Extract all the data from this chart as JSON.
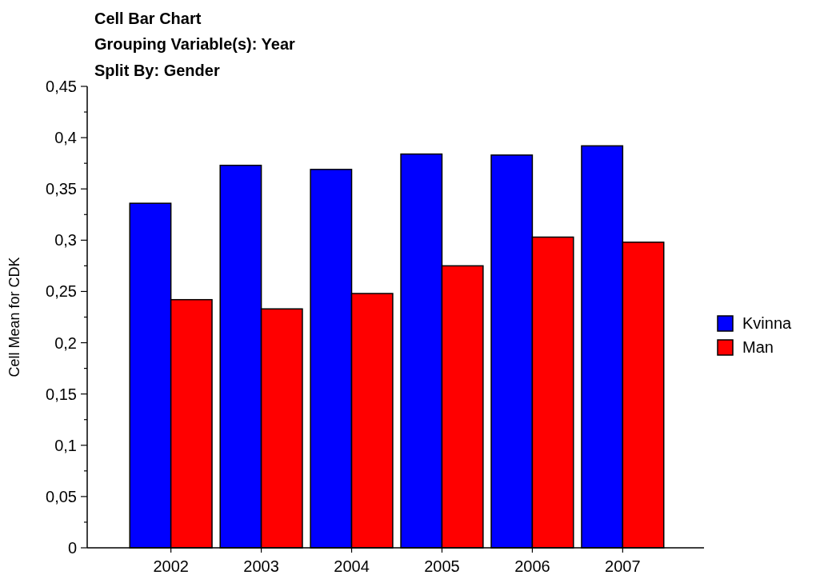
{
  "chart_data": {
    "type": "bar",
    "title": "Cell Bar Chart",
    "subtitle": "Grouping Variable(s): Year\nSplit By: Gender",
    "ylabel": "Cell Mean for CDK",
    "categories": [
      "2002",
      "2003",
      "2004",
      "2005",
      "2006",
      "2007"
    ],
    "series": [
      {
        "name": "Kvinna",
        "color": "#0000ff",
        "values": [
          0.336,
          0.373,
          0.369,
          0.384,
          0.383,
          0.392
        ]
      },
      {
        "name": "Man",
        "color": "#ff0000",
        "values": [
          0.242,
          0.233,
          0.248,
          0.275,
          0.303,
          0.298
        ]
      }
    ],
    "ylim": [
      0,
      0.45
    ],
    "yticks": [
      {
        "value": 0,
        "label": "0"
      },
      {
        "value": 0.025,
        "label": null
      },
      {
        "value": 0.05,
        "label": "0,05"
      },
      {
        "value": 0.075,
        "label": null
      },
      {
        "value": 0.1,
        "label": "0,1"
      },
      {
        "value": 0.125,
        "label": null
      },
      {
        "value": 0.15,
        "label": "0,15"
      },
      {
        "value": 0.175,
        "label": null
      },
      {
        "value": 0.2,
        "label": "0,2"
      },
      {
        "value": 0.225,
        "label": null
      },
      {
        "value": 0.25,
        "label": "0,25"
      },
      {
        "value": 0.275,
        "label": null
      },
      {
        "value": 0.3,
        "label": "0,3"
      },
      {
        "value": 0.325,
        "label": null
      },
      {
        "value": 0.35,
        "label": "0,35"
      },
      {
        "value": 0.375,
        "label": null
      },
      {
        "value": 0.4,
        "label": "0,4"
      },
      {
        "value": 0.425,
        "label": null
      },
      {
        "value": 0.45,
        "label": "0,45"
      }
    ],
    "grid": false,
    "legend": "right"
  }
}
